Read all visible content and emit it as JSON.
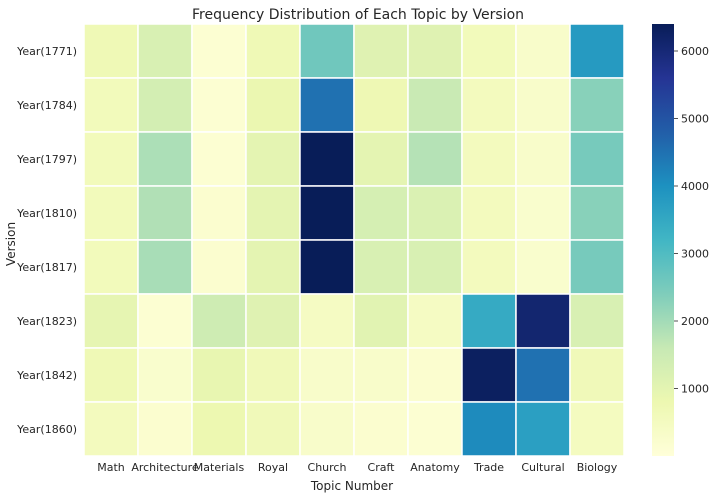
{
  "chart_data": {
    "type": "heatmap",
    "title": "Frequency Distribution of Each Topic by Version",
    "xlabel": "Topic Number",
    "ylabel": "Version",
    "x_categories": [
      "Math",
      "Architecture",
      "Materials",
      "Royal",
      "Church",
      "Craft",
      "Anatomy",
      "Trade",
      "Cultural",
      "Biology"
    ],
    "y_categories": [
      "Year(1771)",
      "Year(1784)",
      "Year(1797)",
      "Year(1810)",
      "Year(1817)",
      "Year(1823)",
      "Year(1842)",
      "Year(1860)"
    ],
    "values": [
      [
        700,
        1250,
        150,
        700,
        2600,
        1100,
        1100,
        600,
        300,
        3800
      ],
      [
        600,
        1350,
        150,
        850,
        4500,
        750,
        1550,
        550,
        300,
        2300
      ],
      [
        600,
        1900,
        150,
        1000,
        6500,
        1000,
        1800,
        550,
        300,
        2500
      ],
      [
        600,
        1850,
        200,
        1000,
        6400,
        1300,
        1200,
        550,
        250,
        2300
      ],
      [
        600,
        1950,
        200,
        1000,
        6400,
        1250,
        1250,
        550,
        250,
        2500
      ],
      [
        950,
        150,
        1450,
        1100,
        450,
        1050,
        450,
        3450,
        6100,
        1250
      ],
      [
        700,
        250,
        900,
        650,
        300,
        300,
        200,
        6300,
        4500,
        650
      ],
      [
        550,
        200,
        800,
        650,
        300,
        200,
        150,
        4100,
        3700,
        500
      ]
    ],
    "colorbar": {
      "min": 0,
      "max": 6400,
      "ticks": [
        1000,
        2000,
        3000,
        4000,
        5000,
        6000
      ]
    },
    "colormap": "YlGnBu",
    "grid": false
  }
}
